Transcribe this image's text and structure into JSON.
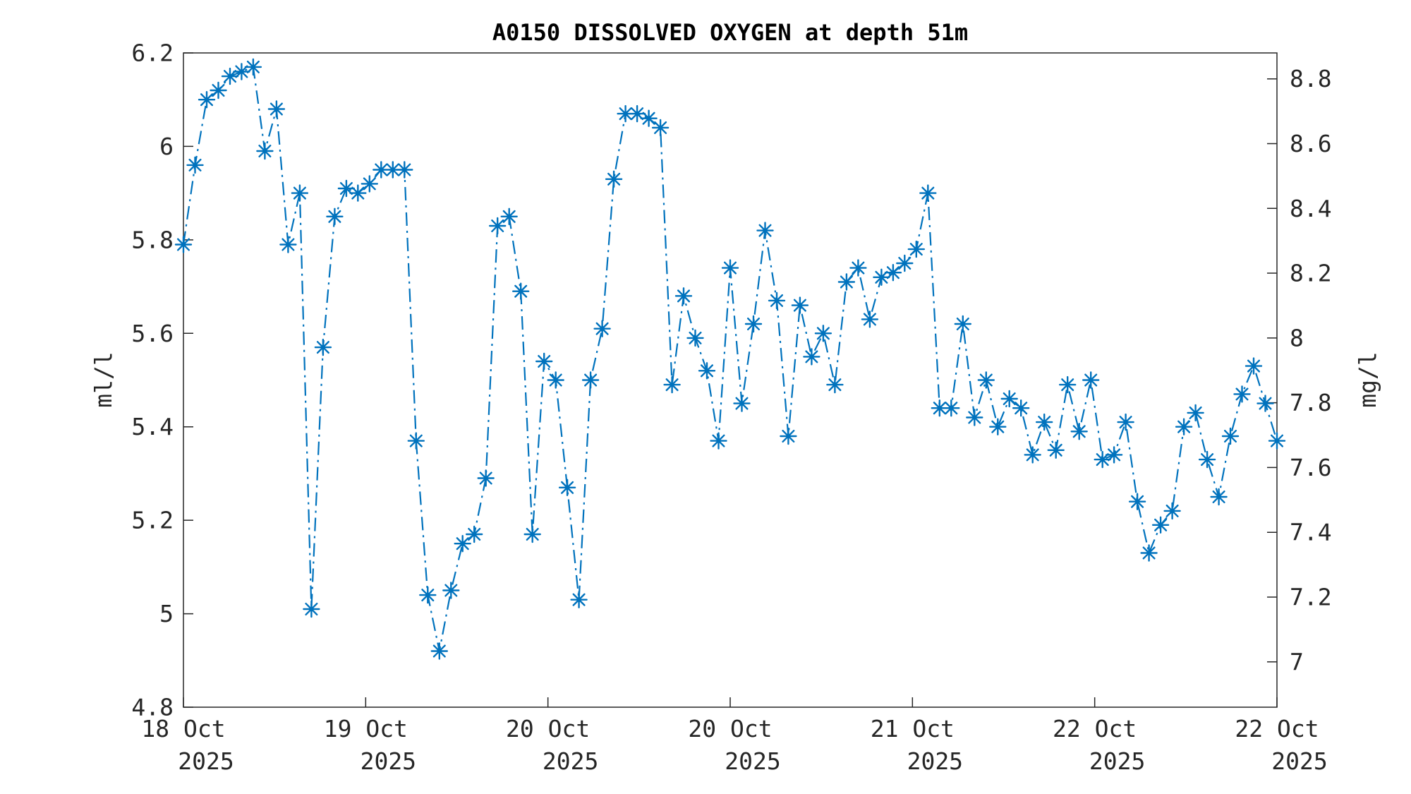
{
  "figure": {
    "background": "#ffffff",
    "axis_color": "#262626",
    "grid": false,
    "legend": null
  },
  "chart_data": {
    "type": "line",
    "title": "A0150 DISSOLVED OXYGEN at depth 51m",
    "x_axis": {
      "tick_labels_line1": [
        "18 Oct",
        "19 Oct",
        "20 Oct",
        "20 Oct",
        "21 Oct",
        "22 Oct",
        "22 Oct"
      ],
      "tick_labels_line2": [
        "2025",
        "2025",
        "2025",
        "2025",
        "2025",
        "2025",
        "2025"
      ]
    },
    "y_axis_left": {
      "label": "ml/l",
      "tick_labels": [
        "6.2",
        "6",
        "5.8",
        "5.6",
        "5.4",
        "5.2",
        "5",
        "4.8"
      ],
      "tick_values": [
        6.2,
        6.0,
        5.8,
        5.6,
        5.4,
        5.2,
        5.0,
        4.8
      ],
      "lim": [
        4.8,
        6.2
      ]
    },
    "y_axis_right": {
      "label": "mg/l",
      "tick_labels": [
        "8.8",
        "8.6",
        "8.4",
        "8.2",
        "8",
        "7.8",
        "7.6",
        "7.4",
        "7.2",
        "7"
      ],
      "tick_values": [
        8.8,
        8.6,
        8.4,
        8.2,
        8.0,
        7.8,
        7.6,
        7.4,
        7.2,
        7.0
      ],
      "lim": [
        6.86,
        8.88
      ]
    },
    "series": [
      {
        "name": "dissolved oxygen",
        "units": "ml/l",
        "color": "#0072BD",
        "line_style": "dash-dot",
        "marker": "asterisk",
        "values": [
          5.79,
          5.96,
          6.1,
          6.12,
          6.15,
          6.16,
          6.17,
          5.99,
          6.08,
          5.79,
          5.9,
          5.01,
          5.57,
          5.85,
          5.91,
          5.9,
          5.92,
          5.95,
          5.95,
          5.95,
          5.37,
          5.04,
          4.92,
          5.05,
          5.15,
          5.17,
          5.29,
          5.83,
          5.85,
          5.69,
          5.17,
          5.54,
          5.5,
          5.27,
          5.03,
          5.5,
          5.61,
          5.93,
          6.07,
          6.07,
          6.06,
          6.04,
          5.49,
          5.68,
          5.59,
          5.52,
          5.37,
          5.74,
          5.45,
          5.62,
          5.82,
          5.67,
          5.38,
          5.66,
          5.55,
          5.6,
          5.49,
          5.71,
          5.74,
          5.63,
          5.72,
          5.73,
          5.75,
          5.78,
          5.9,
          5.44,
          5.44,
          5.62,
          5.42,
          5.5,
          5.4,
          5.46,
          5.44,
          5.34,
          5.41,
          5.35,
          5.49,
          5.39,
          5.5,
          5.33,
          5.34,
          5.41,
          5.24,
          5.13,
          5.19,
          5.22,
          5.4,
          5.43,
          5.33,
          5.25,
          5.38,
          5.47,
          5.53,
          5.45,
          5.37
        ]
      }
    ]
  }
}
